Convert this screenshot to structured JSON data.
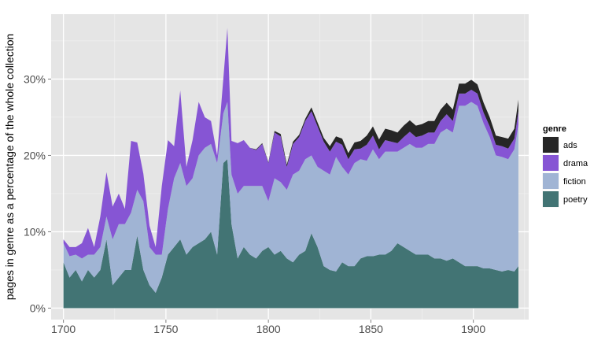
{
  "chart_data": {
    "type": "area",
    "stacked": true,
    "xlabel": "",
    "ylabel": "pages in genre as a percentage of the whole collection",
    "xlim": [
      1694,
      1927
    ],
    "ylim": [
      -1.5,
      38.5
    ],
    "x_ticks": [
      1700,
      1750,
      1800,
      1850,
      1900
    ],
    "y_ticks": [
      0,
      10,
      20,
      30
    ],
    "y_tick_labels": [
      "0%",
      "10%",
      "20%",
      "30%"
    ],
    "grid": true,
    "background": "#e5e5e5",
    "legend": {
      "title": "genre",
      "position": "right",
      "entries": [
        "ads",
        "drama",
        "fiction",
        "poetry"
      ]
    },
    "stack_order": [
      "poetry",
      "fiction",
      "drama",
      "ads"
    ],
    "colors": {
      "poetry": "#427474",
      "fiction": "#a0b4d4",
      "drama": "#8655d4",
      "ads": "#262626"
    },
    "x": [
      1700,
      1703,
      1706,
      1709,
      1712,
      1715,
      1718,
      1721,
      1724,
      1727,
      1730,
      1733,
      1736,
      1739,
      1742,
      1745,
      1748,
      1751,
      1754,
      1757,
      1760,
      1763,
      1766,
      1769,
      1772,
      1775,
      1778,
      1780,
      1782,
      1785,
      1788,
      1791,
      1794,
      1797,
      1800,
      1803,
      1806,
      1809,
      1812,
      1815,
      1818,
      1821,
      1824,
      1827,
      1830,
      1833,
      1836,
      1839,
      1842,
      1845,
      1848,
      1851,
      1854,
      1857,
      1860,
      1863,
      1866,
      1869,
      1872,
      1875,
      1878,
      1881,
      1884,
      1887,
      1890,
      1893,
      1896,
      1899,
      1902,
      1905,
      1908,
      1911,
      1914,
      1917,
      1920,
      1922
    ],
    "series": [
      {
        "name": "poetry",
        "values": [
          6,
          4,
          5,
          3.5,
          5,
          4,
          5,
          9,
          3,
          4,
          5,
          5,
          9.5,
          5,
          3,
          2,
          4,
          7,
          8,
          9,
          7,
          8,
          8.5,
          9,
          10,
          7,
          19,
          19.5,
          11,
          6.5,
          8,
          7,
          6.5,
          7.5,
          8,
          7,
          7.5,
          6.5,
          6,
          7,
          7.5,
          9.8,
          8,
          5.5,
          5,
          4.8,
          6,
          5.5,
          5.5,
          6.5,
          6.8,
          6.8,
          7,
          7,
          7.5,
          8.5,
          8,
          7.5,
          7,
          7,
          7,
          6.5,
          6.5,
          6.2,
          6.5,
          6,
          5.5,
          5.5,
          5.5,
          5.2,
          5.2,
          5,
          4.8,
          5,
          4.8,
          5.5
        ]
      },
      {
        "name": "fiction",
        "values": [
          2.5,
          2.8,
          2,
          3,
          2,
          3,
          3,
          3,
          6,
          7,
          6,
          7.5,
          6,
          9,
          5,
          5,
          3,
          6,
          9,
          10,
          9,
          9,
          11.5,
          12,
          11.5,
          12,
          6.5,
          7.5,
          6.5,
          8.5,
          8,
          9,
          9.5,
          8.5,
          6,
          10,
          9,
          9,
          11.5,
          11,
          12,
          10.2,
          10.5,
          12.5,
          12.5,
          15,
          12.5,
          12,
          13.5,
          13,
          12.5,
          14,
          12.5,
          13.5,
          13,
          12,
          13,
          14,
          14,
          14,
          14.5,
          15,
          16.5,
          17.3,
          16.5,
          20.5,
          21,
          21.5,
          21,
          19,
          17.2,
          15,
          15,
          14.5,
          16,
          18.5
        ]
      },
      {
        "name": "drama",
        "values": [
          0.5,
          1.2,
          1,
          2,
          3.5,
          1,
          4,
          5.8,
          4.3,
          4,
          2,
          9.4,
          6.2,
          3.6,
          2.8,
          1,
          9,
          9,
          4.2,
          9.5,
          2.5,
          5,
          7,
          4,
          3,
          1,
          4.5,
          9.7,
          4.4,
          6.6,
          6,
          5,
          4.7,
          5.5,
          5,
          6,
          6,
          3,
          4,
          4.4,
          5,
          5.8,
          5.3,
          3.8,
          3,
          2,
          2.9,
          2,
          1.8,
          1.4,
          2.1,
          1.8,
          1.3,
          1.5,
          1.3,
          1.1,
          1.4,
          1.6,
          1.4,
          1.6,
          1.5,
          1.5,
          1.5,
          1.9,
          1.5,
          1.6,
          1.6,
          1.6,
          1.6,
          1.4,
          1.4,
          1.4,
          1.4,
          1.4,
          1.4,
          1.8
        ]
      },
      {
        "name": "ads",
        "values": [
          0,
          0,
          0,
          0,
          0,
          0,
          0,
          0,
          0,
          0,
          0,
          0,
          0,
          0,
          0,
          0,
          0,
          0,
          0,
          0,
          0,
          0,
          0,
          0,
          0,
          0,
          0,
          0,
          0,
          0,
          0,
          0,
          0.1,
          0.1,
          0.1,
          0.2,
          0.3,
          0.3,
          0.3,
          0.3,
          0.3,
          0.5,
          0.5,
          0.5,
          0.7,
          0.7,
          0.8,
          0.8,
          0.9,
          1.0,
          1.2,
          1.2,
          1.3,
          1.5,
          1.5,
          1.4,
          1.5,
          1.5,
          1.5,
          1.5,
          1.5,
          1.5,
          1.5,
          1.5,
          1.5,
          1.3,
          1.3,
          1.3,
          1.2,
          1.3,
          1.2,
          1.2,
          1.2,
          1.3,
          1.3,
          1.5
        ]
      }
    ]
  }
}
